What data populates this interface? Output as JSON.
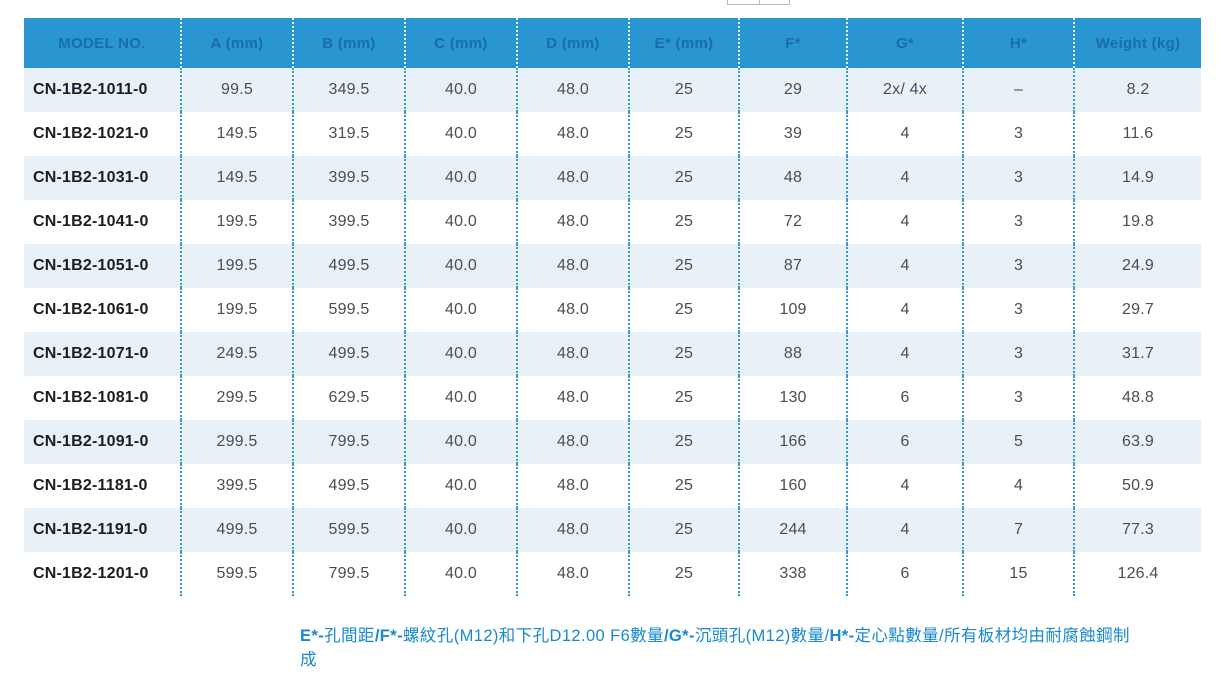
{
  "colors": {
    "header_bg": "#2996D2",
    "header_text": "#1A6DA6",
    "row_alt_bg": "#E8F1F8",
    "row_bg": "#FFFFFF",
    "divider_dots_body": "#3F97C7",
    "divider_dots_header": "#FFFFFF",
    "model_text": "#1C1D22",
    "value_text": "#4C4D52",
    "footnote_text": "#1789CC"
  },
  "table": {
    "columns": [
      "MODEL NO.",
      "A (mm)",
      "B (mm)",
      "C (mm)",
      "D (mm)",
      "E* (mm)",
      "F*",
      "G*",
      "H*",
      "Weight (kg)"
    ],
    "rows": [
      [
        "CN-1B2-1011-0",
        "99.5",
        "349.5",
        "40.0",
        "48.0",
        "25",
        "29",
        "2x/ 4x",
        "–",
        "8.2"
      ],
      [
        "CN-1B2-1021-0",
        "149.5",
        "319.5",
        "40.0",
        "48.0",
        "25",
        "39",
        "4",
        "3",
        "11.6"
      ],
      [
        "CN-1B2-1031-0",
        "149.5",
        "399.5",
        "40.0",
        "48.0",
        "25",
        "48",
        "4",
        "3",
        "14.9"
      ],
      [
        "CN-1B2-1041-0",
        "199.5",
        "399.5",
        "40.0",
        "48.0",
        "25",
        "72",
        "4",
        "3",
        "19.8"
      ],
      [
        "CN-1B2-1051-0",
        "199.5",
        "499.5",
        "40.0",
        "48.0",
        "25",
        "87",
        "4",
        "3",
        "24.9"
      ],
      [
        "CN-1B2-1061-0",
        "199.5",
        "599.5",
        "40.0",
        "48.0",
        "25",
        "109",
        "4",
        "3",
        "29.7"
      ],
      [
        "CN-1B2-1071-0",
        "249.5",
        "499.5",
        "40.0",
        "48.0",
        "25",
        "88",
        "4",
        "3",
        "31.7"
      ],
      [
        "CN-1B2-1081-0",
        "299.5",
        "629.5",
        "40.0",
        "48.0",
        "25",
        "130",
        "6",
        "3",
        "48.8"
      ],
      [
        "CN-1B2-1091-0",
        "299.5",
        "799.5",
        "40.0",
        "48.0",
        "25",
        "166",
        "6",
        "5",
        "63.9"
      ],
      [
        "CN-1B2-1181-0",
        "399.5",
        "499.5",
        "40.0",
        "48.0",
        "25",
        "160",
        "4",
        "4",
        "50.9"
      ],
      [
        "CN-1B2-1191-0",
        "499.5",
        "599.5",
        "40.0",
        "48.0",
        "25",
        "244",
        "4",
        "7",
        "77.3"
      ],
      [
        "CN-1B2-1201-0",
        "599.5",
        "799.5",
        "40.0",
        "48.0",
        "25",
        "338",
        "6",
        "15",
        "126.4"
      ]
    ]
  },
  "footnote": {
    "segments": [
      {
        "text": "E*-",
        "bold": true
      },
      {
        "text": "孔間距",
        "bold": false
      },
      {
        "text": "/F*-",
        "bold": true
      },
      {
        "text": "螺紋孔(M12)和下孔D12.00 F6數量",
        "bold": false
      },
      {
        "text": "/G*-",
        "bold": true
      },
      {
        "text": "沉頭孔(M12)數量/",
        "bold": false
      },
      {
        "text": "H*-",
        "bold": true
      },
      {
        "text": "定心點數量/所有板材均由耐腐蝕鋼制成",
        "bold": false
      }
    ]
  }
}
